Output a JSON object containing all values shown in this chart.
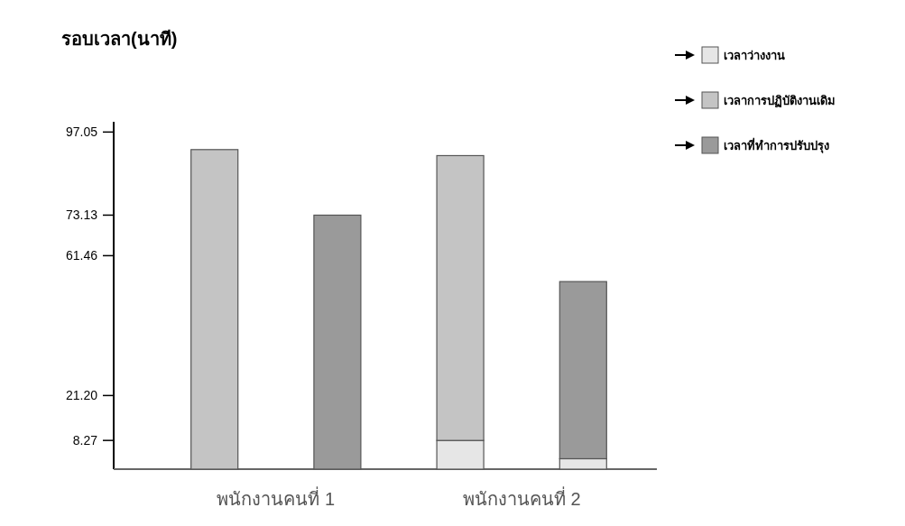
{
  "chart_data": {
    "type": "bar",
    "stacked": true,
    "ylabel": "รอบเวลา(นาที)",
    "categories": [
      "พนักงานคนที่ 1",
      null,
      "พนักงานคนที่ 2",
      null
    ],
    "series": [
      {
        "name": "เวลาว่างงาน",
        "color": "#e6e6e6",
        "values": [
          null,
          null,
          8.27,
          3
        ]
      },
      {
        "name": "เวลาการปฏิบัติงานเดิม",
        "color": "#c4c4c4",
        "values": [
          92,
          null,
          82,
          null
        ]
      },
      {
        "name": "เวลาที่ทำการปรับปรุง",
        "color": "#9a9a9a",
        "values": [
          null,
          73.13,
          null,
          51
        ]
      }
    ],
    "ylim": [
      0,
      100
    ],
    "yticks": [
      {
        "value": 8.27,
        "label": "8.27"
      },
      {
        "value": 21.2,
        "label": "21.20"
      },
      {
        "value": 61.46,
        "label": "61.46"
      },
      {
        "value": 73.13,
        "label": "73.13"
      },
      {
        "value": 97.05,
        "label": "97.05"
      }
    ],
    "grid": false,
    "legend": "top right"
  }
}
